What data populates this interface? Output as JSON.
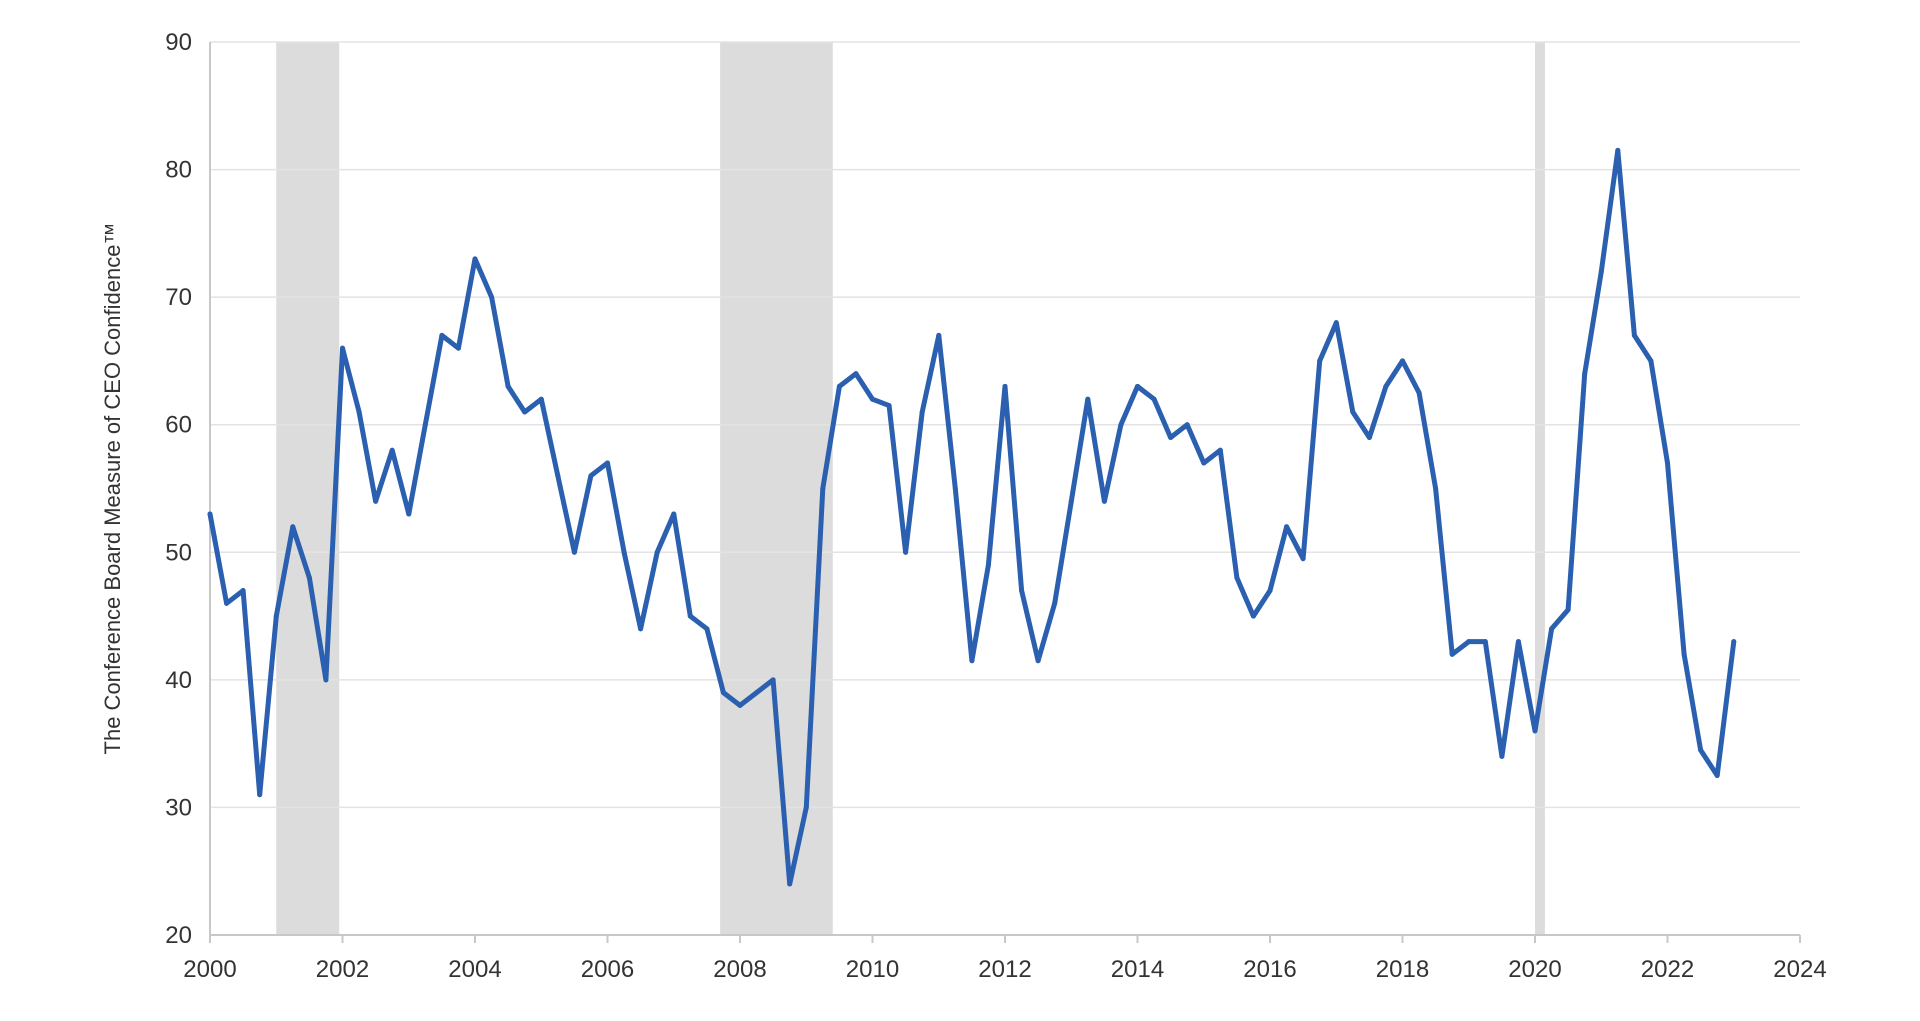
{
  "chart_data": {
    "type": "line",
    "title": "",
    "xlabel": "",
    "ylabel": "The Conference Board Measure of CEO Confidence™",
    "xlim": [
      2000,
      2024
    ],
    "ylim": [
      20,
      90
    ],
    "x_ticks": [
      "2000",
      "2002",
      "2004",
      "2006",
      "2008",
      "2010",
      "2012",
      "2014",
      "2016",
      "2018",
      "2020",
      "2022",
      "2024"
    ],
    "y_ticks": [
      "20",
      "30",
      "40",
      "50",
      "60",
      "70",
      "80",
      "90"
    ],
    "grid": "horizontal",
    "legend": "none",
    "colors": {
      "line": "#2b5fb0",
      "recession": "#dcdcdc",
      "grid": "#e3e3e3",
      "axis": "#c8c8c8"
    },
    "recessions": [
      {
        "start": 2001.0,
        "end": 2001.95
      },
      {
        "start": 2007.7,
        "end": 2009.4
      },
      {
        "start": 2020.0,
        "end": 2020.15
      }
    ],
    "series": [
      {
        "x": [
          2000.0,
          2000.25,
          2000.5,
          2000.75,
          2001.0,
          2001.25,
          2001.5,
          2001.75,
          2002.0,
          2002.25,
          2002.5,
          2002.75,
          2003.0,
          2003.25,
          2003.5,
          2003.75,
          2004.0,
          2004.25,
          2004.5,
          2004.75,
          2005.0,
          2005.25,
          2005.5,
          2005.75,
          2006.0,
          2006.25,
          2006.5,
          2006.75,
          2007.0,
          2007.25,
          2007.5,
          2007.75,
          2008.0,
          2008.25,
          2008.5,
          2008.75,
          2009.0,
          2009.25,
          2009.5,
          2009.75,
          2010.0,
          2010.25,
          2010.5,
          2010.75,
          2011.0,
          2011.25,
          2011.5,
          2011.75,
          2012.0,
          2012.25,
          2012.5,
          2012.75,
          2013.0,
          2013.25,
          2013.5,
          2013.75,
          2014.0,
          2014.25,
          2014.5,
          2014.75,
          2015.0,
          2015.25,
          2015.5,
          2015.75,
          2016.0,
          2016.25,
          2016.5,
          2016.75,
          2017.0,
          2017.25,
          2017.5,
          2017.75,
          2018.0,
          2018.25,
          2018.5,
          2018.75,
          2019.0,
          2019.25,
          2019.5,
          2019.75,
          2020.0,
          2020.25,
          2020.5,
          2020.75,
          2021.0,
          2021.25,
          2021.5,
          2021.75,
          2022.0,
          2022.25,
          2022.5,
          2022.75,
          2023.0
        ],
        "values": [
          53,
          46,
          47,
          31,
          45,
          52,
          48,
          40,
          66,
          61,
          54,
          58,
          53,
          60,
          67,
          66,
          73,
          70,
          63,
          61,
          62,
          56,
          50,
          56,
          57,
          50,
          44,
          50,
          53,
          45,
          44,
          39,
          38,
          39,
          40,
          24,
          30,
          55,
          63,
          64,
          62,
          61.5,
          50,
          61,
          67,
          55,
          41.5,
          49,
          63,
          47,
          41.5,
          46,
          54,
          62,
          54,
          60,
          63,
          62,
          59,
          60,
          57,
          58,
          48,
          45,
          47,
          52,
          49.5,
          65,
          68,
          61,
          59,
          63,
          65,
          62.5,
          55,
          42,
          43,
          43,
          34,
          43,
          36,
          44,
          45.5,
          64,
          72,
          81.5,
          67,
          65,
          57,
          42,
          34.5,
          32.5,
          43
        ]
      }
    ]
  }
}
